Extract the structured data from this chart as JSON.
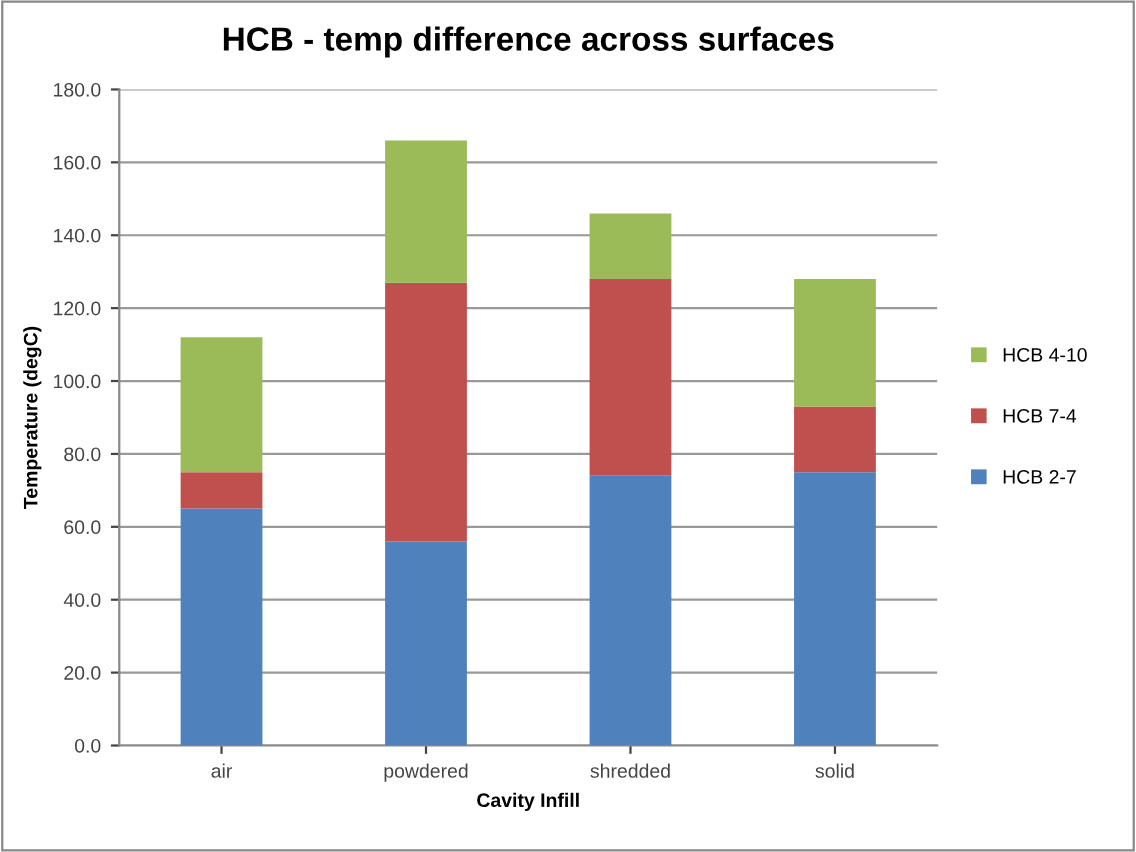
{
  "chart_data": {
    "type": "bar",
    "title": "HCB - temp difference across surfaces",
    "xlabel": "Cavity Infill",
    "ylabel": "Temperature (degC)",
    "categories": [
      "air",
      "powdered",
      "shredded",
      "solid"
    ],
    "stacked": true,
    "series": [
      {
        "name": "HCB 2-7",
        "color": "#4f81bd",
        "values": [
          65,
          56,
          74,
          75
        ]
      },
      {
        "name": "HCB 7-4",
        "color": "#c0504d",
        "values": [
          10,
          71,
          54,
          18
        ]
      },
      {
        "name": "HCB 4-10",
        "color": "#9bbb59",
        "values": [
          37,
          39,
          18,
          35
        ]
      }
    ],
    "ylim": [
      0,
      180
    ],
    "yticks": [
      {
        "value": 0,
        "label": "0.0"
      },
      {
        "value": 20,
        "label": "20.0"
      },
      {
        "value": 40,
        "label": "40.0"
      },
      {
        "value": 60,
        "label": "60.0"
      },
      {
        "value": 80,
        "label": "80.0"
      },
      {
        "value": 100,
        "label": "100.0"
      },
      {
        "value": 120,
        "label": "120.0"
      },
      {
        "value": 140,
        "label": "140.0"
      },
      {
        "value": 160,
        "label": "160.0"
      },
      {
        "value": 180,
        "label": "180.0"
      }
    ],
    "grid": "y",
    "legend": "right"
  }
}
